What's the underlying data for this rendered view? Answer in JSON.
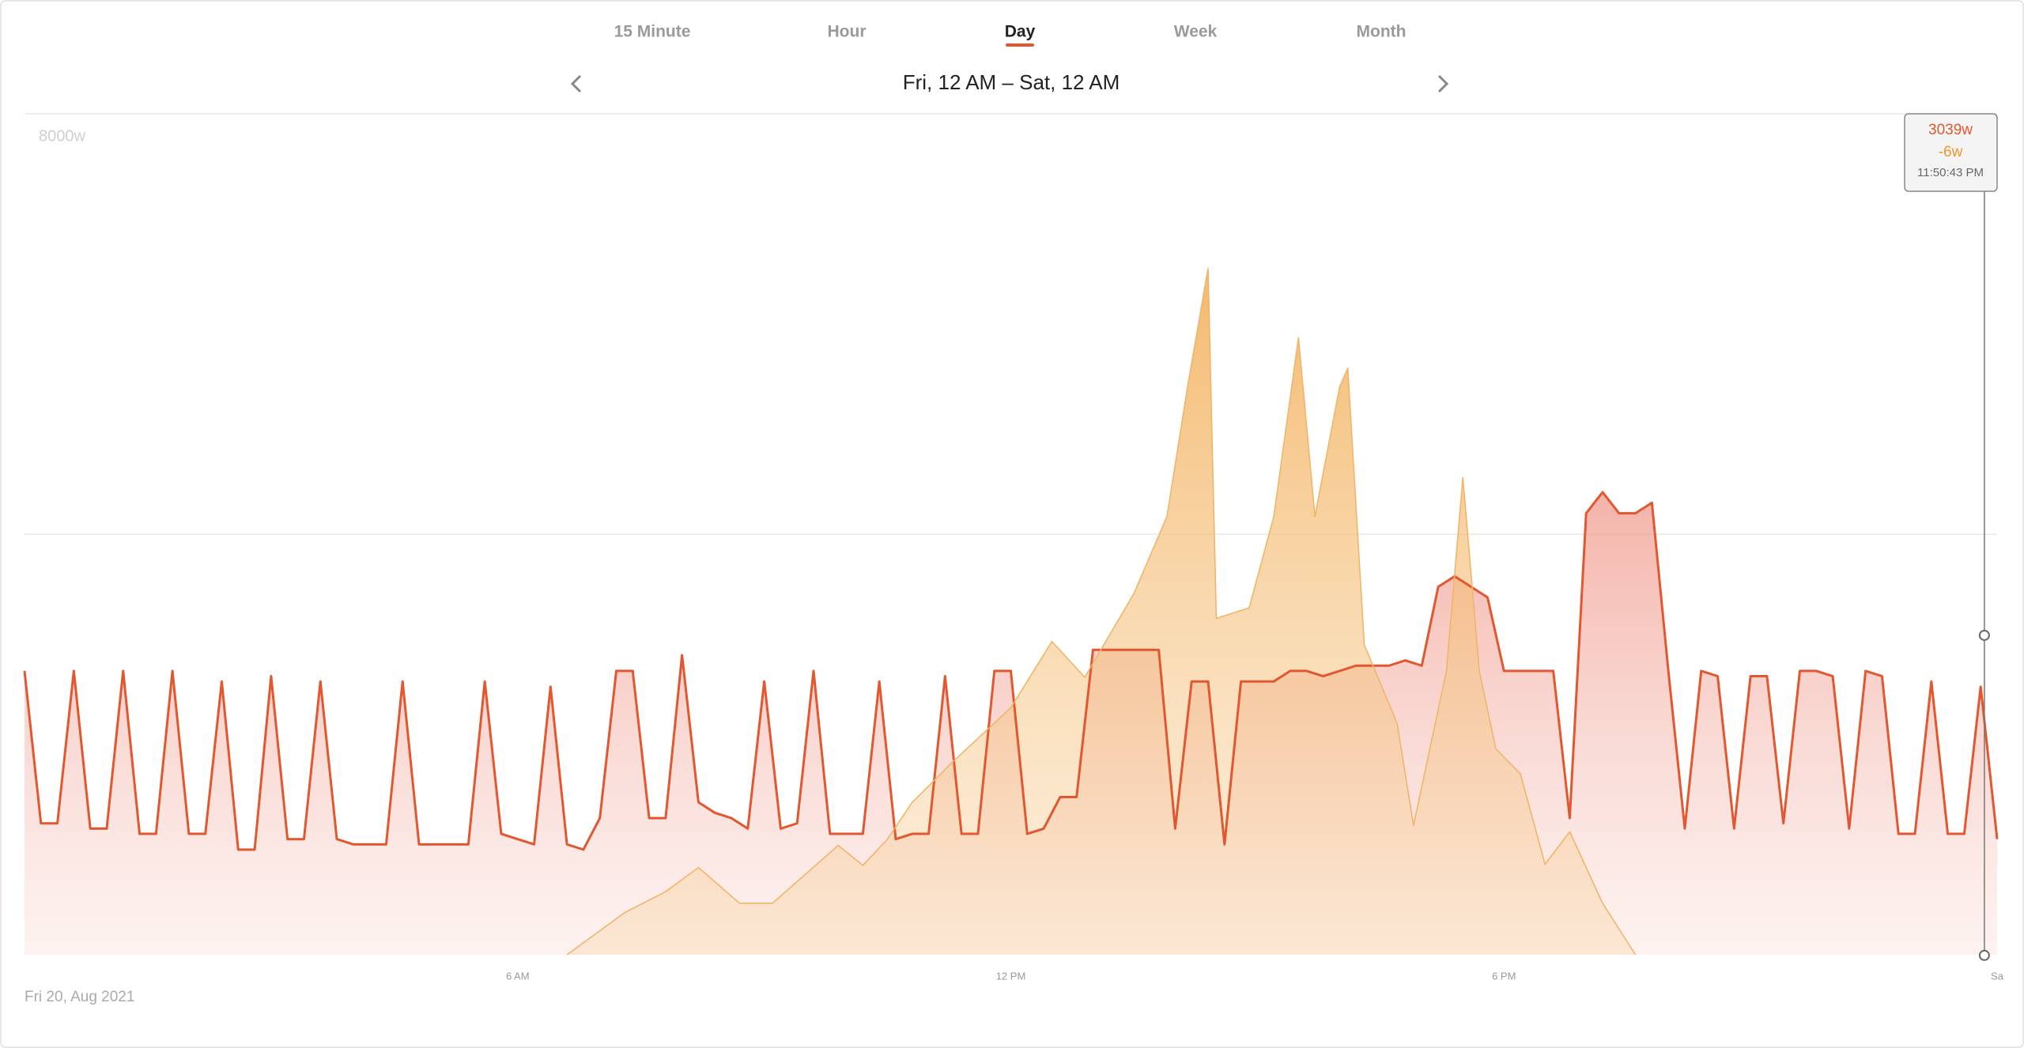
{
  "tabs": [
    "15 Minute",
    "Hour",
    "Day",
    "Week",
    "Month"
  ],
  "active_tab": 2,
  "range_title": "Fri, 12 AM – Sat, 12 AM",
  "date_label": "Fri 20, Aug 2021",
  "chart_data": {
    "type": "area",
    "xlim": [
      0,
      24
    ],
    "ylim": [
      0,
      8000
    ],
    "yticks": [
      {
        "value": 8000,
        "label": "8000w"
      }
    ],
    "gridlines": [
      4000,
      8000
    ],
    "xticks": [
      {
        "value": 6,
        "label": "6 AM"
      },
      {
        "value": 12,
        "label": "12 PM"
      },
      {
        "value": 18,
        "label": "6 PM"
      },
      {
        "value": 24,
        "label": "Sa"
      }
    ],
    "series": [
      {
        "color": "#e2572f",
        "x": [
          0,
          0.2,
          0.4,
          0.6,
          0.8,
          1,
          1.2,
          1.4,
          1.6,
          1.8,
          2,
          2.2,
          2.4,
          2.6,
          2.8,
          3,
          3.2,
          3.4,
          3.6,
          3.8,
          4,
          4.2,
          4.4,
          4.6,
          4.8,
          5,
          5.2,
          5.4,
          5.6,
          5.8,
          6,
          6.2,
          6.4,
          6.6,
          6.8,
          7,
          7.2,
          7.4,
          7.6,
          7.8,
          8,
          8.2,
          8.4,
          8.6,
          8.8,
          9,
          9.2,
          9.4,
          9.6,
          9.8,
          10,
          10.2,
          10.4,
          10.6,
          10.8,
          11,
          11.2,
          11.4,
          11.6,
          11.8,
          12,
          12.2,
          12.4,
          12.6,
          12.8,
          13,
          13.2,
          13.4,
          13.6,
          13.8,
          14,
          14.2,
          14.4,
          14.6,
          14.8,
          15,
          15.2,
          15.4,
          15.6,
          15.8,
          16,
          16.2,
          16.4,
          16.6,
          16.8,
          17,
          17.2,
          17.4,
          17.6,
          17.8,
          18,
          18.2,
          18.4,
          18.6,
          18.8,
          19,
          19.2,
          19.4,
          19.6,
          19.8,
          20,
          20.2,
          20.4,
          20.6,
          20.8,
          21,
          21.2,
          21.4,
          21.6,
          21.8,
          22,
          22.2,
          22.4,
          22.6,
          22.8,
          23,
          23.2,
          23.4,
          23.6,
          23.8,
          24
        ],
        "values": [
          2700,
          1250,
          1250,
          2700,
          1200,
          1200,
          2700,
          1150,
          1150,
          2700,
          1150,
          1150,
          2600,
          1000,
          1000,
          2650,
          1100,
          1100,
          2600,
          1100,
          1050,
          1050,
          1050,
          2600,
          1050,
          1050,
          1050,
          1050,
          2600,
          1150,
          1100,
          1050,
          2550,
          1050,
          1000,
          1300,
          2700,
          2700,
          1300,
          1300,
          2850,
          1450,
          1350,
          1300,
          1200,
          2600,
          1200,
          1250,
          2700,
          1150,
          1150,
          1150,
          2600,
          1100,
          1150,
          1150,
          2650,
          1150,
          1150,
          2700,
          2700,
          1150,
          1200,
          1500,
          1500,
          2900,
          2900,
          2900,
          2900,
          2900,
          1200,
          2600,
          2600,
          1050,
          2600,
          2600,
          2600,
          2700,
          2700,
          2650,
          2700,
          2750,
          2750,
          2750,
          2800,
          2750,
          3500,
          3600,
          3500,
          3400,
          2700,
          2700,
          2700,
          2700,
          1300,
          4200,
          4400,
          4200,
          4200,
          4300,
          2700,
          1200,
          2700,
          2650,
          1200,
          2650,
          2650,
          1250,
          2700,
          2700,
          2650,
          1200,
          2700,
          2650,
          1150,
          1150,
          2600,
          1150,
          1150,
          2550,
          1100
        ]
      },
      {
        "color": "#f0b56a",
        "x": [
          6.6,
          7.3,
          7.8,
          8.2,
          8.7,
          9.1,
          9.9,
          10.2,
          10.5,
          10.8,
          11.3,
          12,
          12.5,
          12.9,
          13.5,
          13.9,
          14.15,
          14.4,
          14.5,
          14.9,
          15.2,
          15.5,
          15.7,
          16,
          16.1,
          16.3,
          16.7,
          16.9,
          17.3,
          17.5,
          17.7,
          17.9,
          18.2,
          18.5,
          18.8,
          19.2,
          19.6
        ],
        "values": [
          0,
          400,
          600,
          830,
          490,
          490,
          1040,
          850,
          1100,
          1450,
          1840,
          2350,
          2980,
          2640,
          3440,
          4170,
          5400,
          6530,
          3200,
          3300,
          4170,
          5870,
          4170,
          5400,
          5580,
          2950,
          2200,
          1230,
          2700,
          4540,
          2700,
          1960,
          1720,
          860,
          1170,
          490,
          0
        ]
      }
    ],
    "cursor": {
      "x": 23.845,
      "label": "11:50:43 PM",
      "values": [
        3039,
        -6
      ],
      "value_labels": [
        "3039w",
        "-6w"
      ]
    }
  }
}
